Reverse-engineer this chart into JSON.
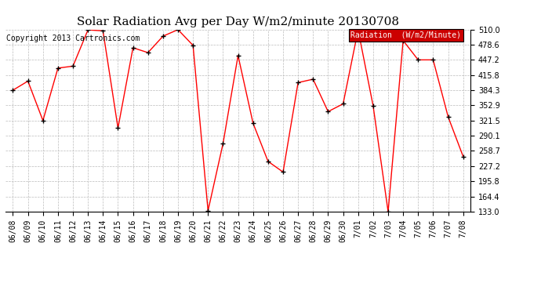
{
  "title": "Solar Radiation Avg per Day W/m2/minute 20130708",
  "copyright": "Copyright 2013 Cartronics.com",
  "legend_label": "Radiation  (W/m2/Minute)",
  "x_labels": [
    "06/08",
    "06/09",
    "06/10",
    "06/11",
    "06/12",
    "06/13",
    "06/14",
    "06/15",
    "06/16",
    "06/17",
    "06/18",
    "06/19",
    "06/20",
    "06/21",
    "06/22",
    "06/23",
    "06/24",
    "06/25",
    "06/26",
    "06/27",
    "06/28",
    "06/29",
    "06/30",
    "7/01",
    "7/02",
    "7/03",
    "7/04",
    "7/05",
    "7/06",
    "7/07",
    "7/08"
  ],
  "values": [
    384.3,
    403.0,
    321.5,
    430.0,
    434.0,
    509.0,
    507.0,
    306.0,
    472.0,
    462.0,
    496.0,
    509.5,
    477.0,
    135.0,
    274.0,
    456.0,
    316.0,
    237.0,
    215.0,
    400.0,
    407.0,
    340.0,
    356.0,
    509.0,
    352.0,
    133.0,
    487.0,
    447.0,
    447.0,
    329.0,
    247.0
  ],
  "ylim": [
    133.0,
    510.0
  ],
  "yticks": [
    133.0,
    164.4,
    195.8,
    227.2,
    258.7,
    290.1,
    321.5,
    352.9,
    384.3,
    415.8,
    447.2,
    478.6,
    510.0
  ],
  "line_color": "red",
  "marker_color": "black",
  "bg_color": "#ffffff",
  "grid_color": "#bbbbbb",
  "title_fontsize": 11,
  "copyright_fontsize": 7,
  "tick_fontsize": 7,
  "legend_bg": "#cc0000",
  "legend_text_color": "#ffffff",
  "legend_fontsize": 7
}
